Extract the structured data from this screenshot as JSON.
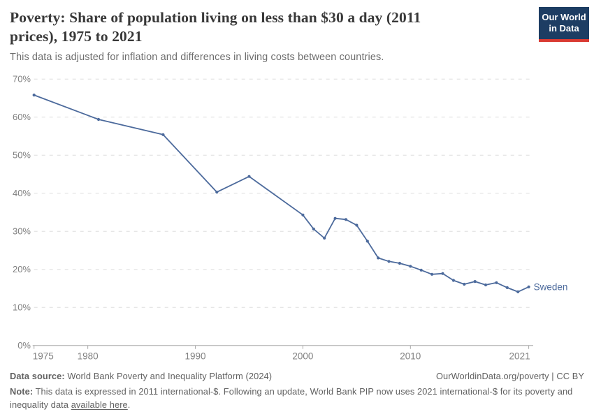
{
  "header": {
    "title": "Poverty: Share of population living on less than $30 a day (2011 prices), 1975 to 2021",
    "subtitle": "This data is adjusted for inflation and differences in living costs between countries.",
    "logo_text": "Our World in Data"
  },
  "chart_data": {
    "type": "line",
    "title": "Poverty: Share of population living on less than $30 a day (2011 prices), 1975 to 2021",
    "subtitle": "This data is adjusted for inflation and differences in living costs between countries.",
    "xlabel": "",
    "ylabel": "",
    "xlim": [
      1975,
      2021
    ],
    "ylim": [
      0,
      70
    ],
    "x_ticks": [
      1975,
      1980,
      1990,
      2000,
      2010,
      2021
    ],
    "y_ticks": [
      0,
      10,
      20,
      30,
      40,
      50,
      60,
      70
    ],
    "y_tick_suffix": "%",
    "grid": "dashed-horizontal",
    "legend_position": "end-of-line-label",
    "series": [
      {
        "name": "Sweden",
        "color": "#4c6a9c",
        "points": [
          [
            1975,
            65.8
          ],
          [
            1981,
            59.4
          ],
          [
            1987,
            55.4
          ],
          [
            1992,
            40.3
          ],
          [
            1995,
            44.4
          ],
          [
            2000,
            34.3
          ],
          [
            2001,
            30.6
          ],
          [
            2002,
            28.2
          ],
          [
            2003,
            33.4
          ],
          [
            2004,
            33.1
          ],
          [
            2005,
            31.6
          ],
          [
            2006,
            27.4
          ],
          [
            2007,
            23.0
          ],
          [
            2008,
            22.1
          ],
          [
            2009,
            21.6
          ],
          [
            2010,
            20.8
          ],
          [
            2011,
            19.8
          ],
          [
            2012,
            18.7
          ],
          [
            2013,
            18.9
          ],
          [
            2014,
            17.1
          ],
          [
            2015,
            16.1
          ],
          [
            2016,
            16.8
          ],
          [
            2017,
            15.9
          ],
          [
            2018,
            16.5
          ],
          [
            2019,
            15.2
          ],
          [
            2020,
            14.1
          ],
          [
            2021,
            15.4
          ]
        ]
      }
    ],
    "colors": {
      "gridline": "#dedede",
      "axis": "#a8a8a8",
      "tick_label": "#808080"
    }
  },
  "footer": {
    "datasource_label": "Data source:",
    "datasource_value": " World Bank Poverty and Inequality Platform (2024)",
    "attribution": "OurWorldinData.org/poverty | CC BY",
    "note_label": "Note:",
    "note_text": " This data is expressed in 2011 international-$. Following an update, World Bank PIP now uses 2021 international-$ for its poverty and inequality data ",
    "note_link": "available here",
    "note_suffix": "."
  }
}
